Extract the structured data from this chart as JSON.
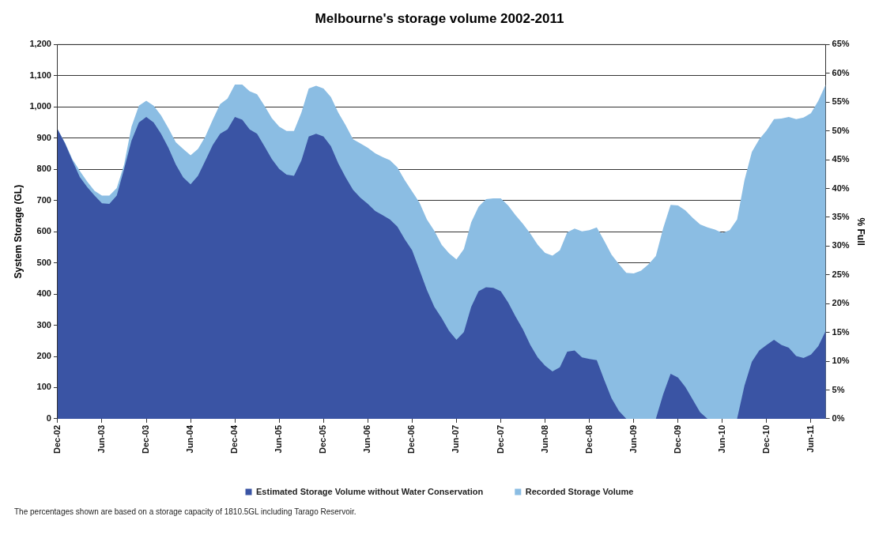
{
  "chart_data": {
    "type": "area",
    "title": "Melbourne's storage volume 2002-2011",
    "ylabel": "System Storage (GL)",
    "y2label": "% Full",
    "categories": [
      "Dec-02",
      null,
      null,
      null,
      null,
      null,
      "Jun-03",
      null,
      null,
      null,
      null,
      null,
      "Dec-03",
      null,
      null,
      null,
      null,
      null,
      "Jun-04",
      null,
      null,
      null,
      null,
      null,
      "Dec-04",
      null,
      null,
      null,
      null,
      null,
      "Jun-05",
      null,
      null,
      null,
      null,
      null,
      "Dec-05",
      null,
      null,
      null,
      null,
      null,
      "Jun-06",
      null,
      null,
      null,
      null,
      null,
      "Dec-06",
      null,
      null,
      null,
      null,
      null,
      "Jun-07",
      null,
      null,
      null,
      null,
      null,
      "Dec-07",
      null,
      null,
      null,
      null,
      null,
      "Jun-08",
      null,
      null,
      null,
      null,
      null,
      "Dec-08",
      null,
      null,
      null,
      null,
      null,
      "Jun-09",
      null,
      null,
      null,
      null,
      null,
      "Dec-09",
      null,
      null,
      null,
      null,
      null,
      "Jun-10",
      null,
      null,
      null,
      null,
      null,
      "Dec-10",
      null,
      null,
      null,
      null,
      null,
      "Jun-11",
      null,
      null
    ],
    "series": [
      {
        "name": "Estimated Storage Volume without Water Conservation",
        "color": "#3a54a4",
        "values": [
          928,
          883,
          828,
          775,
          743,
          716,
          691,
          689,
          716,
          801,
          892,
          950,
          968,
          950,
          914,
          869,
          815,
          774,
          752,
          779,
          828,
          878,
          914,
          928,
          968,
          959,
          928,
          914,
          874,
          833,
          801,
          783,
          779,
          828,
          905,
          914,
          905,
          874,
          819,
          774,
          734,
          709,
          689,
          666,
          653,
          639,
          616,
          576,
          540,
          477,
          413,
          359,
          323,
          282,
          253,
          278,
          359,
          409,
          422,
          420,
          409,
          373,
          328,
          287,
          237,
          197,
          170,
          152,
          165,
          215,
          219,
          197,
          192,
          188,
          125,
          66,
          25,
          0,
          0,
          0,
          0,
          0,
          79,
          144,
          132,
          102,
          61,
          21,
          0,
          0,
          0,
          0,
          0,
          106,
          183,
          219,
          237,
          253,
          237,
          228,
          201,
          195,
          206,
          233,
          282
        ]
      },
      {
        "name": "Recorded Storage Volume",
        "color": "#8bbde3",
        "values": [
          928,
          885,
          832,
          795,
          761,
          731,
          716,
          716,
          740,
          815,
          937,
          1004,
          1020,
          1004,
          973,
          932,
          887,
          865,
          845,
          865,
          905,
          959,
          1009,
          1027,
          1072,
          1072,
          1050,
          1041,
          1004,
          964,
          937,
          923,
          923,
          982,
          1059,
          1068,
          1059,
          1032,
          982,
          941,
          896,
          883,
          869,
          851,
          839,
          829,
          806,
          765,
          729,
          693,
          639,
          603,
          558,
          531,
          511,
          544,
          630,
          680,
          704,
          707,
          707,
          684,
          653,
          625,
          594,
          558,
          532,
          523,
          540,
          598,
          610,
          601,
          605,
          614,
          571,
          526,
          496,
          468,
          466,
          475,
          495,
          522,
          612,
          686,
          684,
          668,
          644,
          623,
          614,
          607,
          596,
          605,
          639,
          765,
          856,
          896,
          925,
          961,
          963,
          968,
          961,
          966,
          980,
          1020,
          1072
        ]
      }
    ],
    "ylim": [
      0,
      1200
    ],
    "yticks": [
      0,
      100,
      200,
      300,
      400,
      500,
      600,
      700,
      800,
      900,
      {
        "value": 1000,
        "label": "1,000"
      },
      {
        "value": 1100,
        "label": "1,100"
      },
      {
        "value": 1200,
        "label": "1,200"
      }
    ],
    "y2lim": [
      0,
      65
    ],
    "y2ticks": [
      {
        "value": 0,
        "label": "0%"
      },
      {
        "value": 5,
        "label": "5%"
      },
      {
        "value": 10,
        "label": "10%"
      },
      {
        "value": 15,
        "label": "15%"
      },
      {
        "value": 20,
        "label": "20%"
      },
      {
        "value": 25,
        "label": "25%"
      },
      {
        "value": 30,
        "label": "30%"
      },
      {
        "value": 35,
        "label": "35%"
      },
      {
        "value": 40,
        "label": "40%"
      },
      {
        "value": 45,
        "label": "45%"
      },
      {
        "value": 50,
        "label": "50%"
      },
      {
        "value": 55,
        "label": "55%"
      },
      {
        "value": 60,
        "label": "60%"
      },
      {
        "value": 65,
        "label": "65%"
      }
    ],
    "grid": "y",
    "legend": "bottom",
    "annotations": [
      "The percentages shown are based on a storage capacity of 1810.5GL including Tarago Reservoir."
    ]
  }
}
